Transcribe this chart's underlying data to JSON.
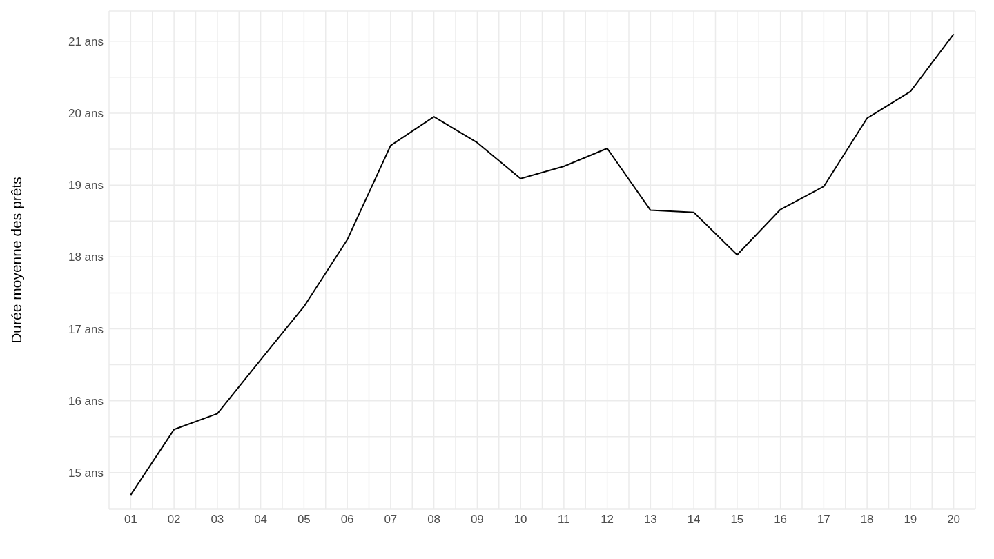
{
  "chart_data": {
    "type": "line",
    "ylabel": "Durée moyenne des prêts",
    "categories": [
      "01",
      "02",
      "03",
      "04",
      "05",
      "06",
      "07",
      "08",
      "09",
      "10",
      "11",
      "12",
      "13",
      "14",
      "15",
      "16",
      "17",
      "18",
      "19",
      "20"
    ],
    "series": [
      {
        "color": "#000000",
        "values": [
          14.69,
          15.6,
          15.82,
          16.57,
          17.31,
          18.24,
          19.55,
          19.95,
          19.59,
          19.09,
          19.26,
          19.51,
          18.65,
          18.62,
          18.03,
          18.66,
          18.98,
          19.93,
          20.3,
          21.1
        ]
      }
    ],
    "ylim": [
      14.49,
      21.42
    ],
    "yticks": [
      {
        "value": 14.5,
        "label": null
      },
      {
        "value": 15,
        "label": "15 ans"
      },
      {
        "value": 15.5,
        "label": null
      },
      {
        "value": 16,
        "label": "16 ans"
      },
      {
        "value": 16.5,
        "label": null
      },
      {
        "value": 17,
        "label": "17 ans"
      },
      {
        "value": 17.5,
        "label": null
      },
      {
        "value": 18,
        "label": "18 ans"
      },
      {
        "value": 18.5,
        "label": null
      },
      {
        "value": 19,
        "label": "19 ans"
      },
      {
        "value": 19.5,
        "label": null
      },
      {
        "value": 20,
        "label": "20 ans"
      },
      {
        "value": 20.5,
        "label": null
      },
      {
        "value": 21,
        "label": "21 ans"
      }
    ],
    "grid": true,
    "legend": false,
    "marker": "none",
    "line_style": "solid"
  }
}
